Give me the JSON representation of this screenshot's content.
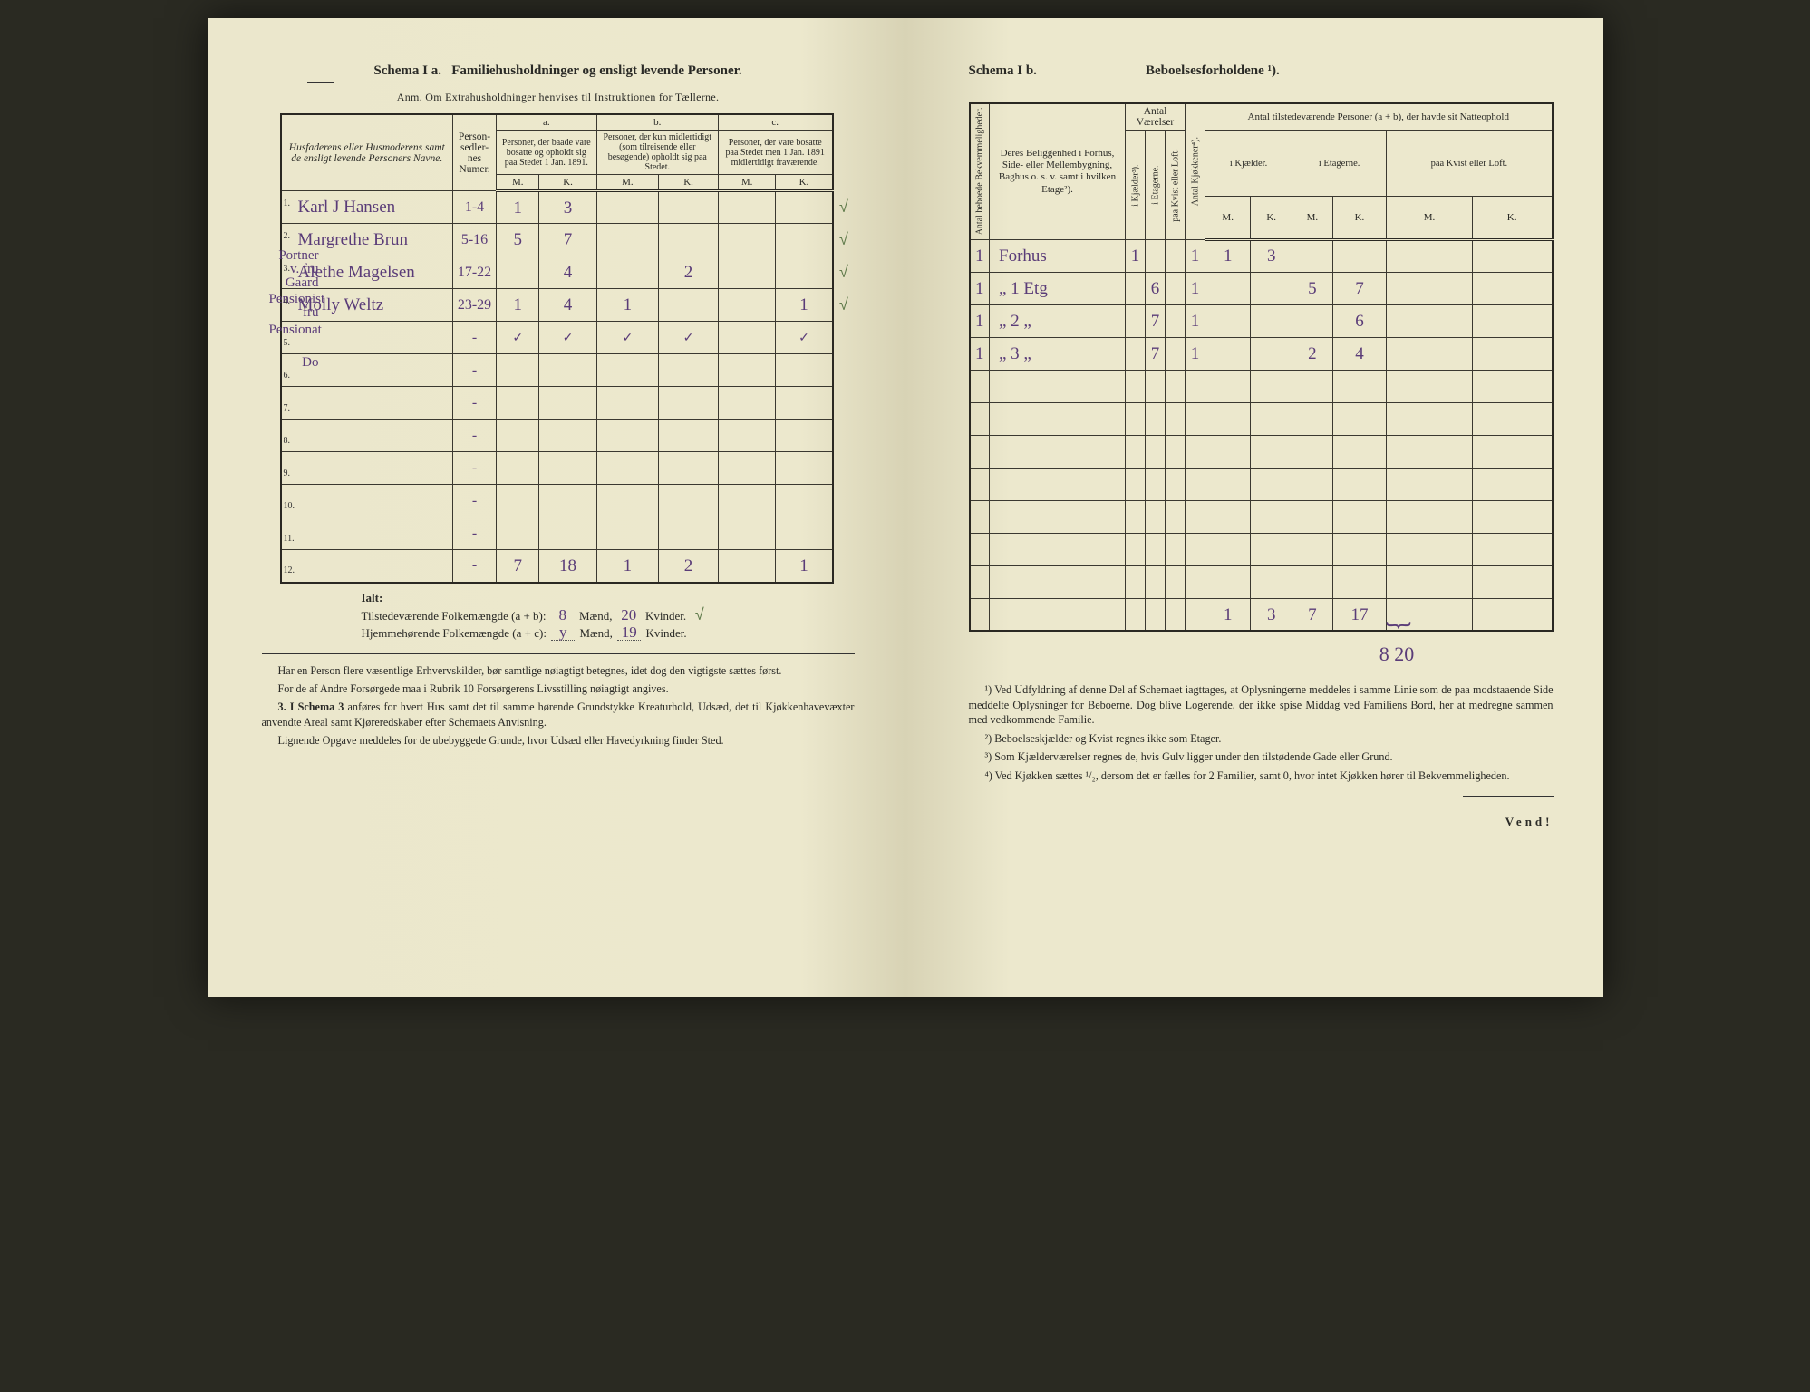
{
  "left": {
    "schema_label": "Schema I a.",
    "schema_title": "Familiehusholdninger og ensligt levende Personer.",
    "anm": "Anm. Om Extrahusholdninger henvises til Instruktionen for Tællerne.",
    "head_name": "Husfaderens eller Husmoderens samt de ensligt levende Personers Navne.",
    "head_numer": "Person-sedler-nes Numer.",
    "col_a_label": "a.",
    "col_a_text": "Personer, der baade vare bosatte og opholdt sig paa Stedet 1 Jan. 1891.",
    "col_b_label": "b.",
    "col_b_text": "Personer, der kun midlertidigt (som tilreisende eller besøgende) opholdt sig paa Stedet.",
    "col_c_label": "c.",
    "col_c_text": "Personer, der vare bosatte paa Stedet men 1 Jan. 1891 midlertidigt fraværende.",
    "mk_m": "M.",
    "mk_k": "K.",
    "margin_notes": [
      "Portner v. fru Gaard",
      "Pensionist fru",
      "Pensionat",
      "Do"
    ],
    "rows": [
      {
        "n": "1.",
        "name": "Karl J Hansen",
        "numer": "1-4",
        "a_m": "1",
        "a_k": "3",
        "b_m": "",
        "b_k": "",
        "c_m": "",
        "c_k": "",
        "chk": "√"
      },
      {
        "n": "2.",
        "name": "Margrethe Brun",
        "numer": "5-16",
        "a_m": "5",
        "a_k": "7",
        "b_m": "",
        "b_k": "",
        "c_m": "",
        "c_k": "",
        "chk": "√"
      },
      {
        "n": "3.",
        "name": "Alethe Magelsen",
        "numer": "17-22",
        "a_m": "",
        "a_k": "4",
        "b_m": "",
        "b_k": "2",
        "c_m": "",
        "c_k": "",
        "chk": "√"
      },
      {
        "n": "4.",
        "name": "Molly Weltz",
        "numer": "23-29",
        "a_m": "1",
        "a_k": "4",
        "b_m": "1",
        "b_k": "",
        "c_m": "",
        "c_k": "1",
        "chk": "√"
      },
      {
        "n": "5.",
        "name": "",
        "numer": "-",
        "a_m": "✓",
        "a_k": "✓",
        "b_m": "✓",
        "b_k": "✓",
        "c_m": "",
        "c_k": "✓",
        "chk": ""
      },
      {
        "n": "6.",
        "name": "",
        "numer": "-",
        "a_m": "",
        "a_k": "",
        "b_m": "",
        "b_k": "",
        "c_m": "",
        "c_k": "",
        "chk": ""
      },
      {
        "n": "7.",
        "name": "",
        "numer": "-",
        "a_m": "",
        "a_k": "",
        "b_m": "",
        "b_k": "",
        "c_m": "",
        "c_k": "",
        "chk": ""
      },
      {
        "n": "8.",
        "name": "",
        "numer": "-",
        "a_m": "",
        "a_k": "",
        "b_m": "",
        "b_k": "",
        "c_m": "",
        "c_k": "",
        "chk": ""
      },
      {
        "n": "9.",
        "name": "",
        "numer": "-",
        "a_m": "",
        "a_k": "",
        "b_m": "",
        "b_k": "",
        "c_m": "",
        "c_k": "",
        "chk": ""
      },
      {
        "n": "10.",
        "name": "",
        "numer": "-",
        "a_m": "",
        "a_k": "",
        "b_m": "",
        "b_k": "",
        "c_m": "",
        "c_k": "",
        "chk": ""
      },
      {
        "n": "11.",
        "name": "",
        "numer": "-",
        "a_m": "",
        "a_k": "",
        "b_m": "",
        "b_k": "",
        "c_m": "",
        "c_k": "",
        "chk": ""
      },
      {
        "n": "12.",
        "name": "",
        "numer": "-",
        "a_m": "7",
        "a_k": "18",
        "b_m": "1",
        "b_k": "2",
        "c_m": "",
        "c_k": "1",
        "chk": ""
      }
    ],
    "ialt": "Ialt:",
    "line_ab": "Tilstedeværende Folkemængde (a + b):",
    "line_ac": "Hjemmehørende Folkemængde (a + c):",
    "ab_m": "8",
    "ab_k": "20",
    "ac_m": "y",
    "ac_k": "19",
    "maend": "Mænd,",
    "kvinder": "Kvinder.",
    "para1": "Har en Person flere væsentlige Erhvervskilder, bør samtlige nøiagtigt betegnes, idet dog den vigtigste sættes først.",
    "para2": "For de af Andre Forsørgede maa i Rubrik 10 Forsørgerens Livsstilling nøiagtigt angives.",
    "para3_lead": "3. I Schema 3",
    "para3": " anføres for hvert Hus samt det til samme hørende Grundstykke Kreaturhold, Udsæd, det til Kjøkkenhavevæxter anvendte Areal samt Kjøreredskaber efter Schemaets Anvisning.",
    "para4": "Lignende Opgave meddeles for de ubebyggede Grunde, hvor Udsæd eller Havedyrkning finder Sted."
  },
  "right": {
    "schema_label": "Schema I b.",
    "schema_title": "Beboelsesforholdene ¹).",
    "h_antal_beb": "Antal beboede Bekvemmeligheder.",
    "h_belig": "Deres Beliggenhed i Forhus, Side- eller Mellembygning, Baghus o. s. v. samt i hvilken Etage²).",
    "h_antal_vaer": "Antal Værelser",
    "h_kj": "i Kjælder³).",
    "h_et": "i Etagerne.",
    "h_kv": "paa Kvist eller Loft.",
    "h_kjok": "Antal Kjøkkener⁴).",
    "h_natte": "Antal tilstedeværende Personer (a + b), der havde sit Natteophold",
    "h_n_kj": "i Kjælder.",
    "h_n_et": "i Etagerne.",
    "h_n_kv": "paa Kvist eller Loft.",
    "mk_m": "M.",
    "mk_k": "K.",
    "rows": [
      {
        "ab": "1",
        "loc": "Forhus",
        "vk": "1",
        "ve": "",
        "vkv": "",
        "kk": "1",
        "nk_m": "1",
        "nk_k": "3",
        "ne_m": "",
        "ne_k": "",
        "nv_m": "",
        "nv_k": ""
      },
      {
        "ab": "1",
        "loc": "„   1 Etg",
        "vk": "",
        "ve": "6",
        "vkv": "",
        "kk": "1",
        "nk_m": "",
        "nk_k": "",
        "ne_m": "5",
        "ne_k": "7",
        "nv_m": "",
        "nv_k": ""
      },
      {
        "ab": "1",
        "loc": "„  2  „",
        "vk": "",
        "ve": "7",
        "vkv": "",
        "kk": "1",
        "nk_m": "",
        "nk_k": "",
        "ne_m": "",
        "ne_k": "6",
        "nv_m": "",
        "nv_k": ""
      },
      {
        "ab": "1",
        "loc": "„  3  „",
        "vk": "",
        "ve": "7",
        "vkv": "",
        "kk": "1",
        "nk_m": "",
        "nk_k": "",
        "ne_m": "2",
        "ne_k": "4",
        "nv_m": "",
        "nv_k": ""
      },
      {
        "ab": "",
        "loc": "",
        "vk": "",
        "ve": "",
        "vkv": "",
        "kk": "",
        "nk_m": "",
        "nk_k": "",
        "ne_m": "",
        "ne_k": "",
        "nv_m": "",
        "nv_k": ""
      },
      {
        "ab": "",
        "loc": "",
        "vk": "",
        "ve": "",
        "vkv": "",
        "kk": "",
        "nk_m": "",
        "nk_k": "",
        "ne_m": "",
        "ne_k": "",
        "nv_m": "",
        "nv_k": ""
      },
      {
        "ab": "",
        "loc": "",
        "vk": "",
        "ve": "",
        "vkv": "",
        "kk": "",
        "nk_m": "",
        "nk_k": "",
        "ne_m": "",
        "ne_k": "",
        "nv_m": "",
        "nv_k": ""
      },
      {
        "ab": "",
        "loc": "",
        "vk": "",
        "ve": "",
        "vkv": "",
        "kk": "",
        "nk_m": "",
        "nk_k": "",
        "ne_m": "",
        "ne_k": "",
        "nv_m": "",
        "nv_k": ""
      },
      {
        "ab": "",
        "loc": "",
        "vk": "",
        "ve": "",
        "vkv": "",
        "kk": "",
        "nk_m": "",
        "nk_k": "",
        "ne_m": "",
        "ne_k": "",
        "nv_m": "",
        "nv_k": ""
      },
      {
        "ab": "",
        "loc": "",
        "vk": "",
        "ve": "",
        "vkv": "",
        "kk": "",
        "nk_m": "",
        "nk_k": "",
        "ne_m": "",
        "ne_k": "",
        "nv_m": "",
        "nv_k": ""
      },
      {
        "ab": "",
        "loc": "",
        "vk": "",
        "ve": "",
        "vkv": "",
        "kk": "",
        "nk_m": "",
        "nk_k": "",
        "ne_m": "",
        "ne_k": "",
        "nv_m": "",
        "nv_k": ""
      },
      {
        "ab": "",
        "loc": "",
        "vk": "",
        "ve": "",
        "vkv": "",
        "kk": "",
        "nk_m": "1",
        "nk_k": "3",
        "ne_m": "7",
        "ne_k": "17",
        "nv_m": "",
        "nv_k": ""
      }
    ],
    "sum": "8   20",
    "fn1": "¹) Ved Udfyldning af denne Del af Schemaet iagttages, at Oplysningerne meddeles i samme Linie som de paa modstaaende Side meddelte Oplysninger for Beboerne. Dog blive Logerende, der ikke spise Middag ved Familiens Bord, her at medregne sammen med vedkommende Familie.",
    "fn2": "²) Beboelseskjælder og Kvist regnes ikke som Etager.",
    "fn3": "³) Som Kjælderværelser regnes de, hvis Gulv ligger under den tilstødende Gade eller Grund.",
    "fn4": "⁴) Ved Kjøkken sættes ¹/₂, dersom det er fælles for 2 Familier, samt 0, hvor intet Kjøkken hører til Bekvemmeligheden.",
    "vend": "Vend!"
  }
}
